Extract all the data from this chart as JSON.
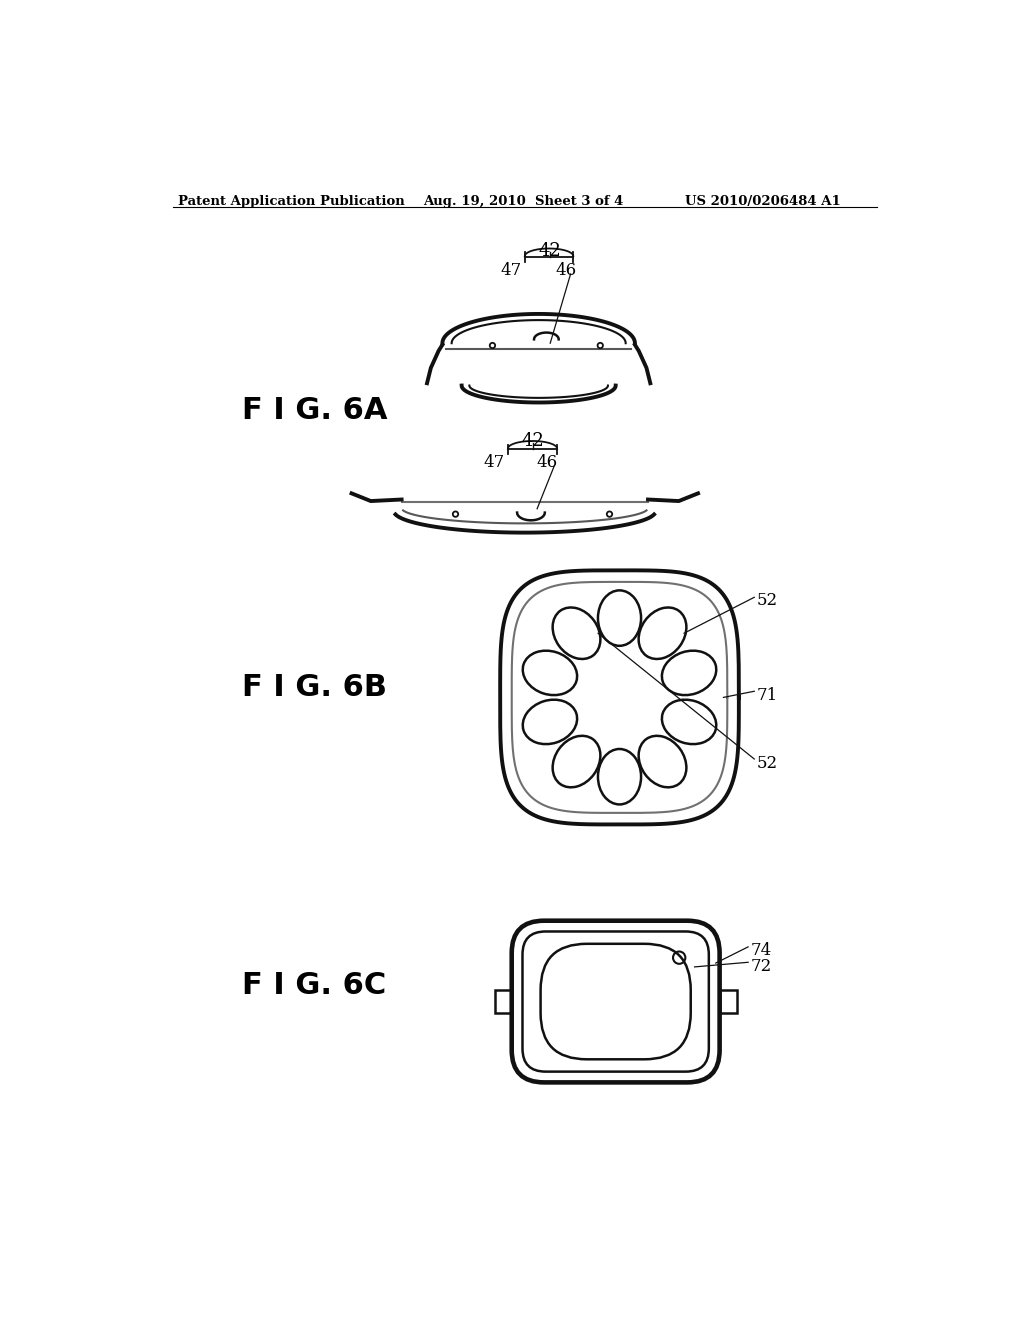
{
  "bg_color": "#ffffff",
  "header_left": "Patent Application Publication",
  "header_center": "Aug. 19, 2010  Sheet 3 of 4",
  "header_right": "US 2010/0206484 A1",
  "fig6a_label": "F I G. 6A",
  "fig6b_label": "F I G. 6B",
  "fig6c_label": "F I G. 6C",
  "lw_main": 1.8,
  "lw_thick": 2.8,
  "color_line": "#111111"
}
